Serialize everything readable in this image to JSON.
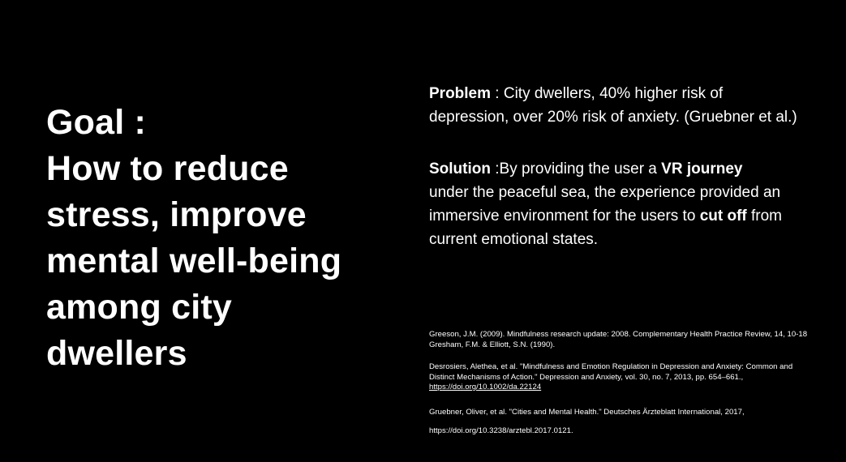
{
  "goal": {
    "lines": [
      "Goal :",
      "How to reduce",
      "stress, improve",
      "mental well-being",
      "among city",
      "dwellers"
    ]
  },
  "problem": {
    "label": "Problem",
    "line1": " : City dwellers, 40% higher risk of",
    "line2": "depression, over 20% risk of  anxiety. (Gruebner et al.)"
  },
  "solution": {
    "label": "Solution",
    "line1_pre": " :By providing the user a ",
    "line1_bold": "VR journey",
    "line2": "under the peaceful sea, the experience provided an",
    "line3_pre": "immersive environment for the users to ",
    "line3_bold": "cut off",
    "line3_post": " from",
    "line4": "current emotional states."
  },
  "references": {
    "ref1_line1": "Greeson, J.M. (2009). Mindfulness research update: 2008. Complementary Health Practice Review, 14, 10-18",
    "ref1_line2": "Gresham, F.M. & Elliott, S.N. (1990).",
    "ref2_line1": "Desrosiers, Alethea, et al. \"Mindfulness and Emotion Regulation in Depression and Anxiety: Common and",
    "ref2_line2": "Distinct Mechanisms of Action.\" Depression and Anxiety, vol. 30, no. 7, 2013, pp. 654–661.,",
    "ref2_link": "https://doi.org/10.1002/da.22124",
    "ref3_line1": "Gruebner, Oliver, et al. \"Cities and Mental Health.\" Deutsches Ärzteblatt International, 2017,",
    "ref3_line2": "https://doi.org/10.3238/arztebl.2017.0121."
  }
}
